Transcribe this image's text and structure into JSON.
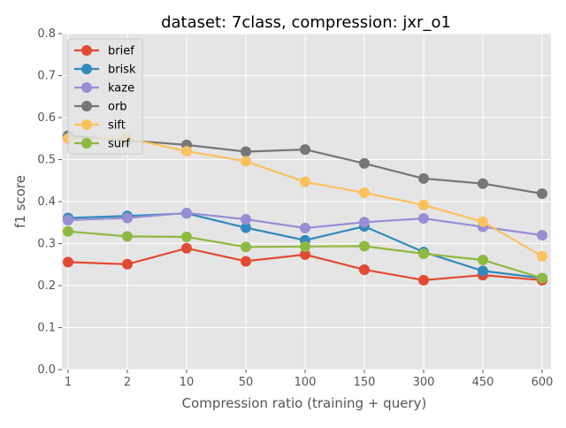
{
  "chart_data": {
    "type": "line",
    "title": "dataset: 7class, compression: jxr_o1",
    "xlabel": "Compression ratio (training + query)",
    "ylabel": "f1 score",
    "categories": [
      "1",
      "2",
      "10",
      "50",
      "100",
      "150",
      "300",
      "450",
      "600"
    ],
    "ylim": [
      0.0,
      0.8
    ],
    "yticks": [
      "0.0",
      "0.1",
      "0.2",
      "0.3",
      "0.4",
      "0.5",
      "0.6",
      "0.7",
      "0.8"
    ],
    "grid": true,
    "legend_position": "top-left",
    "series": [
      {
        "name": "brief",
        "color": "#E24A33",
        "values": [
          0.256,
          0.251,
          0.289,
          0.258,
          0.274,
          0.238,
          0.213,
          0.225,
          0.213
        ]
      },
      {
        "name": "brisk",
        "color": "#348ABD",
        "values": [
          0.361,
          0.366,
          0.372,
          0.338,
          0.308,
          0.341,
          0.28,
          0.235,
          0.218
        ]
      },
      {
        "name": "kaze",
        "color": "#988ED5",
        "values": [
          0.356,
          0.361,
          0.373,
          0.358,
          0.337,
          0.351,
          0.36,
          0.34,
          0.32
        ]
      },
      {
        "name": "orb",
        "color": "#777777",
        "values": [
          0.557,
          0.546,
          0.535,
          0.519,
          0.524,
          0.491,
          0.455,
          0.443,
          0.419
        ]
      },
      {
        "name": "sift",
        "color": "#FBC15E",
        "values": [
          0.55,
          0.551,
          0.52,
          0.496,
          0.447,
          0.421,
          0.392,
          0.352,
          0.27
        ]
      },
      {
        "name": "surf",
        "color": "#8EBA42",
        "values": [
          0.329,
          0.317,
          0.316,
          0.292,
          0.293,
          0.294,
          0.276,
          0.261,
          0.218
        ]
      }
    ]
  }
}
